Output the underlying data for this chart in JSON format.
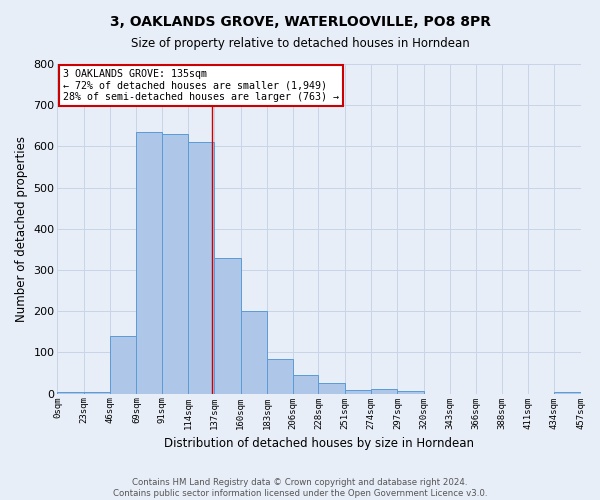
{
  "title": "3, OAKLANDS GROVE, WATERLOOVILLE, PO8 8PR",
  "subtitle": "Size of property relative to detached houses in Horndean",
  "xlabel": "Distribution of detached houses by size in Horndean",
  "ylabel": "Number of detached properties",
  "footnote1": "Contains HM Land Registry data © Crown copyright and database right 2024.",
  "footnote2": "Contains public sector information licensed under the Open Government Licence v3.0.",
  "annotation_line1": "3 OAKLANDS GROVE: 135sqm",
  "annotation_line2": "← 72% of detached houses are smaller (1,949)",
  "annotation_line3": "28% of semi-detached houses are larger (763) →",
  "bar_edges": [
    0,
    23,
    46,
    69,
    91,
    114,
    137,
    160,
    183,
    206,
    228,
    251,
    274,
    297,
    320,
    343,
    366,
    388,
    411,
    434,
    457
  ],
  "bar_heights": [
    5,
    5,
    140,
    635,
    630,
    610,
    330,
    200,
    85,
    45,
    27,
    10,
    12,
    7,
    0,
    0,
    0,
    0,
    0,
    5
  ],
  "bar_color": "#aec6e8",
  "bar_edge_color": "#5b9bd5",
  "vline_x": 135,
  "vline_color": "#cc0000",
  "bg_color": "#e8eef8",
  "grid_color": "#c8d4e8",
  "annotation_box_color": "#ffffff",
  "annotation_box_edge": "#cc0000",
  "ylim": [
    0,
    800
  ],
  "yticks": [
    0,
    100,
    200,
    300,
    400,
    500,
    600,
    700,
    800
  ],
  "tick_labels": [
    "0sqm",
    "23sqm",
    "46sqm",
    "69sqm",
    "91sqm",
    "114sqm",
    "137sqm",
    "160sqm",
    "183sqm",
    "206sqm",
    "228sqm",
    "251sqm",
    "274sqm",
    "297sqm",
    "320sqm",
    "343sqm",
    "366sqm",
    "388sqm",
    "411sqm",
    "434sqm",
    "457sqm"
  ]
}
